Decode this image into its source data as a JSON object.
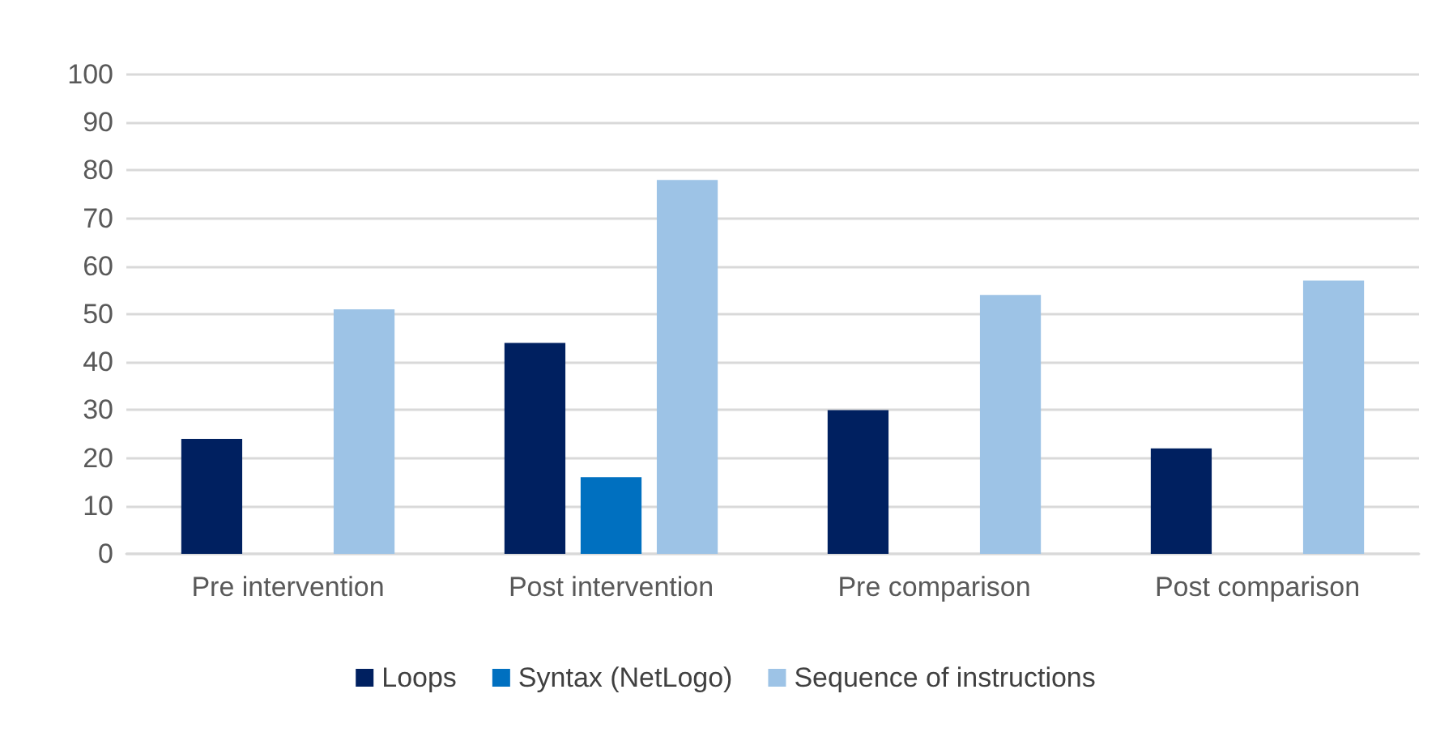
{
  "chart_data": {
    "type": "bar",
    "categories": [
      "Pre intervention",
      "Post intervention",
      "Pre comparison",
      "Post comparison"
    ],
    "series": [
      {
        "name": "Loops",
        "color": "#002060",
        "values": [
          24,
          44,
          30,
          22
        ]
      },
      {
        "name": "Syntax (NetLogo)",
        "color": "#0070c0",
        "values": [
          null,
          16,
          null,
          null
        ]
      },
      {
        "name": "Sequence of instructions",
        "color": "#9dc3e6",
        "values": [
          51,
          78,
          54,
          57
        ]
      }
    ],
    "ylim": [
      0,
      100
    ],
    "yticks": [
      0,
      10,
      20,
      30,
      40,
      50,
      60,
      70,
      80,
      90,
      100
    ],
    "grid": "y",
    "legend": "bottom"
  }
}
